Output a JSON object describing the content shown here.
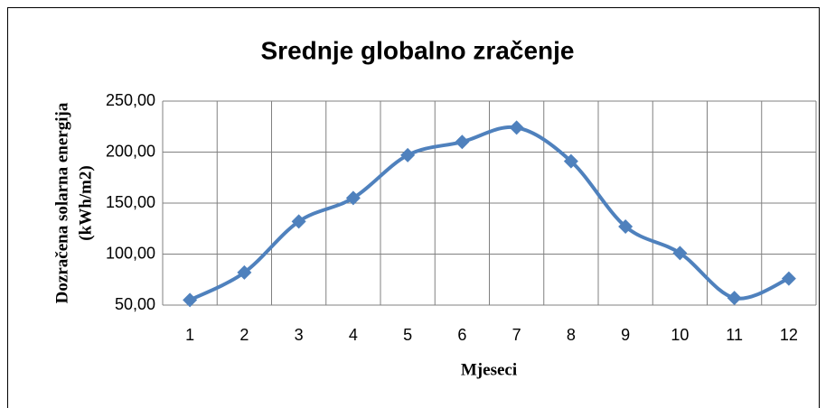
{
  "chart_data": {
    "type": "line",
    "title": "Srednje globalno zračenje",
    "xlabel": "Mjeseci",
    "ylabel": [
      "Dozračena solarna energija",
      "(kWh/m2)"
    ],
    "categories": [
      "1",
      "2",
      "3",
      "4",
      "5",
      "6",
      "7",
      "8",
      "9",
      "10",
      "11",
      "12"
    ],
    "values": [
      55,
      82,
      132,
      155,
      197,
      210,
      224,
      191,
      127,
      101,
      57,
      76
    ],
    "color": "#4f81bd",
    "smooth": true,
    "marker": "diamond",
    "ylim": [
      50,
      250
    ],
    "yticks": [
      {
        "value": 50,
        "label": "50,00"
      },
      {
        "value": 100,
        "label": "100,00"
      },
      {
        "value": 150,
        "label": "150,00"
      },
      {
        "value": 200,
        "label": "200,00"
      },
      {
        "value": 250,
        "label": "250,00"
      }
    ],
    "grid": true
  }
}
